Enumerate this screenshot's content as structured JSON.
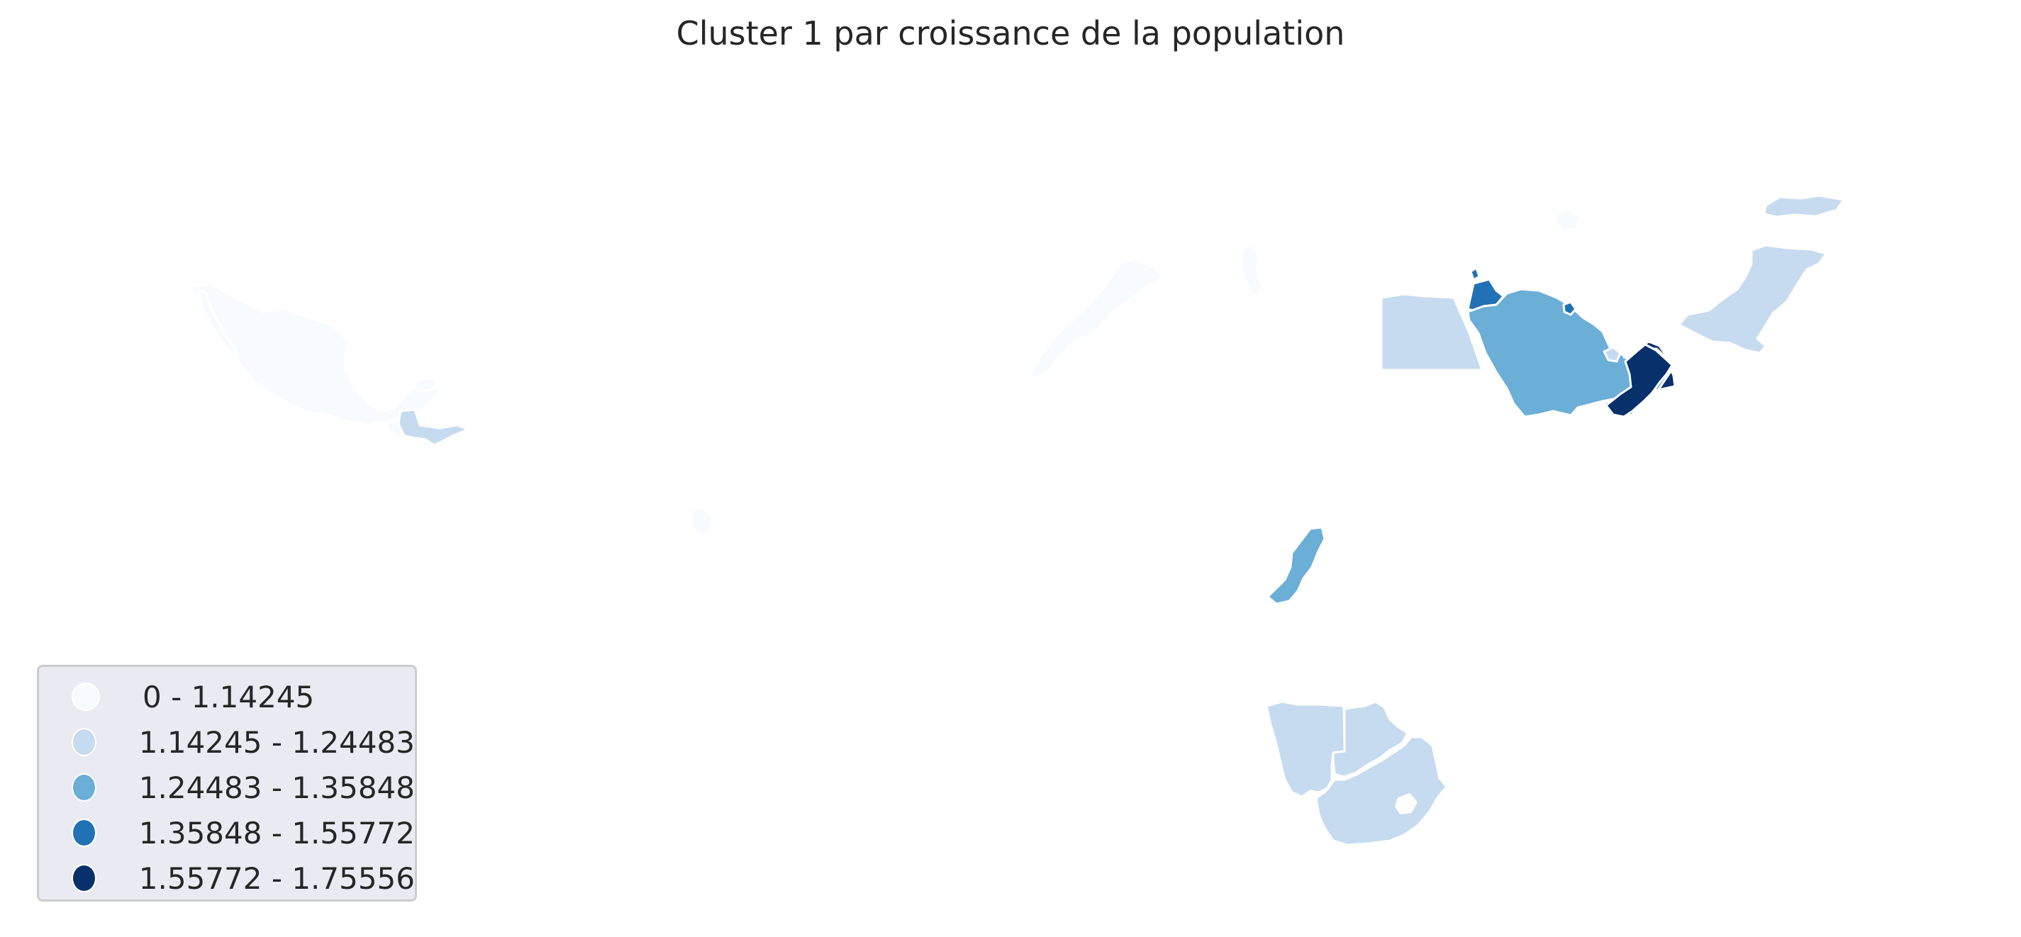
{
  "title": "Cluster 1 par croissance de la population",
  "colors": {
    "c0": "#f7fbff",
    "c1": "#c6dbef",
    "c2": "#6baed6",
    "c3": "#2171b5",
    "c4": "#08306b",
    "border": "#ffffff"
  },
  "legend": {
    "placement": "lower-left",
    "items": [
      {
        "label": "0 - 1.14245",
        "color": "#f7fbff"
      },
      {
        "label": "1.14245 - 1.24483",
        "color": "#c6dbef"
      },
      {
        "label": "1.24483 - 1.35848",
        "color": "#6baed6"
      },
      {
        "label": "1.35848 - 1.55772",
        "color": "#2171b5"
      },
      {
        "label": "1.55772 - 1.75556",
        "color": "#08306b"
      }
    ]
  },
  "chart_data": {
    "type": "choropleth",
    "title": "Cluster 1 par croissance de la population",
    "class_breaks": [
      0,
      1.14245,
      1.24483,
      1.35848,
      1.55772,
      1.75556
    ],
    "regions": [
      {
        "name": "Mexico",
        "class": 0
      },
      {
        "name": "Guatemala",
        "class": 0
      },
      {
        "name": "Belize",
        "class": 0
      },
      {
        "name": "Cuba",
        "class": 0
      },
      {
        "name": "Honduras",
        "class": 1
      },
      {
        "name": "El Salvador",
        "class": 1
      },
      {
        "name": "Nicaragua",
        "class": 1
      },
      {
        "name": "Western Sahara",
        "class": 0
      },
      {
        "name": "Tunisia",
        "class": 0
      },
      {
        "name": "Cape Verde",
        "class": 0
      },
      {
        "name": "Egypt",
        "class": 1
      },
      {
        "name": "Jordan",
        "class": 3
      },
      {
        "name": "Saudi Arabia",
        "class": 2
      },
      {
        "name": "Kuwait",
        "class": 3
      },
      {
        "name": "Qatar",
        "class": 1
      },
      {
        "name": "United Arab Emirates",
        "class": 2
      },
      {
        "name": "Oman",
        "class": 4
      },
      {
        "name": "Pakistan",
        "class": 1
      },
      {
        "name": "Kyrgyzstan",
        "class": 1
      },
      {
        "name": "Turkmenistan",
        "class": 0
      },
      {
        "name": "Tanzania",
        "class": 2
      },
      {
        "name": "Namibia",
        "class": 1
      },
      {
        "name": "Botswana",
        "class": 1
      },
      {
        "name": "South Africa",
        "class": 1
      }
    ]
  }
}
